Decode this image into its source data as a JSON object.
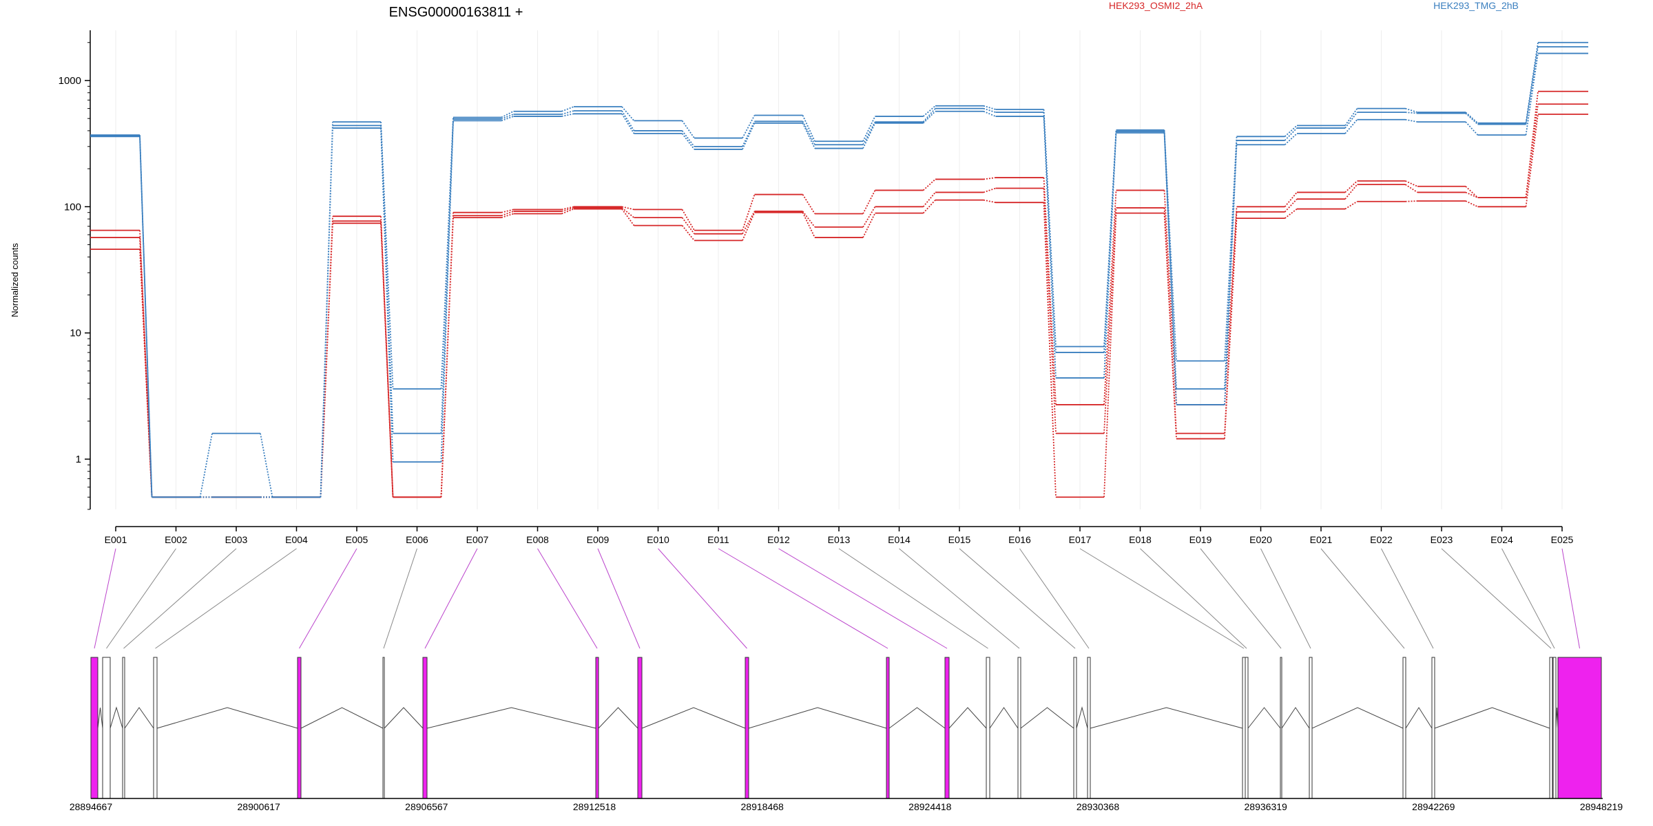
{
  "title": "ENSG00000163811 +",
  "ylabel": "Normalized counts",
  "legend": [
    {
      "label": "HEK293_OSMI2_2hA",
      "color": "#d62728"
    },
    {
      "label": "HEK293_TMG_2hB",
      "color": "#3a7fbf"
    }
  ],
  "colors": {
    "red": "#d62728",
    "blue": "#3a7fbf",
    "exon_highlight": "#ee22ee",
    "connector_highlight": "#bb44cc",
    "connector_plain": "#888888",
    "grid": "#eeeeee"
  },
  "chart_data": {
    "type": "line",
    "scale": "log",
    "ylim": [
      0.4,
      2500
    ],
    "yticks": [
      1,
      10,
      100,
      1000
    ],
    "ytick_labels": [
      "1",
      "10",
      "100",
      "1000"
    ],
    "grid": true,
    "categories": [
      "E001",
      "E002",
      "E003",
      "E004",
      "E005",
      "E006",
      "E007",
      "E008",
      "E009",
      "E010",
      "E011",
      "E012",
      "E013",
      "E014",
      "E015",
      "E016",
      "E017",
      "E018",
      "E019",
      "E020",
      "E021",
      "E022",
      "E023",
      "E024",
      "E025"
    ],
    "series": [
      {
        "group": "red",
        "values": [
          65,
          0.5,
          0.5,
          0.5,
          84,
          0.5,
          90,
          95,
          100,
          95,
          65,
          125,
          88,
          135,
          165,
          170,
          2.7,
          135,
          2.7,
          100,
          130,
          160,
          145,
          118,
          820
        ]
      },
      {
        "group": "red",
        "values": [
          57,
          0.5,
          0.5,
          0.5,
          77,
          0.5,
          85,
          92,
          98,
          82,
          61,
          92,
          69,
          100,
          130,
          140,
          1.6,
          98,
          1.6,
          91,
          115,
          150,
          130,
          118,
          650
        ]
      },
      {
        "group": "red",
        "values": [
          46,
          0.5,
          0.5,
          0.5,
          74,
          0.5,
          82,
          88,
          96,
          71,
          54,
          90,
          57,
          89,
          113,
          108,
          0.5,
          89,
          1.45,
          81,
          96,
          110,
          111,
          100,
          540
        ]
      },
      {
        "group": "blue",
        "values": [
          370,
          0.5,
          1.6,
          0.5,
          470,
          3.6,
          510,
          570,
          620,
          480,
          350,
          530,
          330,
          520,
          630,
          590,
          7.8,
          405,
          6.0,
          360,
          440,
          600,
          560,
          460,
          2000
        ]
      },
      {
        "group": "blue",
        "values": [
          365,
          0.5,
          0.5,
          0.5,
          440,
          1.6,
          495,
          540,
          575,
          400,
          300,
          475,
          310,
          470,
          600,
          560,
          7.0,
          395,
          3.6,
          335,
          420,
          560,
          550,
          450,
          1850
        ]
      },
      {
        "group": "blue",
        "values": [
          360,
          0.5,
          0.5,
          0.5,
          420,
          0.95,
          480,
          520,
          545,
          380,
          285,
          460,
          290,
          460,
          570,
          520,
          4.4,
          385,
          2.7,
          310,
          380,
          490,
          470,
          370,
          1640
        ]
      }
    ]
  },
  "gene_model": {
    "coord_labels": [
      "28894667",
      "28900617",
      "28906567",
      "28912518",
      "28918468",
      "28924418",
      "28930368",
      "28936319",
      "28942269",
      "28948219"
    ],
    "exons": [
      {
        "id": "E001",
        "highlighted": true
      },
      {
        "id": "E002",
        "highlighted": false
      },
      {
        "id": "E003",
        "highlighted": false
      },
      {
        "id": "E004",
        "highlighted": false
      },
      {
        "id": "E005",
        "highlighted": true
      },
      {
        "id": "E006",
        "highlighted": false
      },
      {
        "id": "E007",
        "highlighted": true
      },
      {
        "id": "E008",
        "highlighted": true
      },
      {
        "id": "E009",
        "highlighted": true
      },
      {
        "id": "E010",
        "highlighted": true
      },
      {
        "id": "E011",
        "highlighted": true
      },
      {
        "id": "E012",
        "highlighted": true
      },
      {
        "id": "E013",
        "highlighted": false
      },
      {
        "id": "E014",
        "highlighted": false
      },
      {
        "id": "E015",
        "highlighted": false
      },
      {
        "id": "E016",
        "highlighted": false
      },
      {
        "id": "E017",
        "highlighted": false
      },
      {
        "id": "E018",
        "highlighted": false
      },
      {
        "id": "E019",
        "highlighted": false
      },
      {
        "id": "E020",
        "highlighted": false
      },
      {
        "id": "E021",
        "highlighted": false
      },
      {
        "id": "E022",
        "highlighted": false
      },
      {
        "id": "E023",
        "highlighted": false
      },
      {
        "id": "E024",
        "highlighted": false
      },
      {
        "id": "E025",
        "highlighted": true
      }
    ]
  }
}
